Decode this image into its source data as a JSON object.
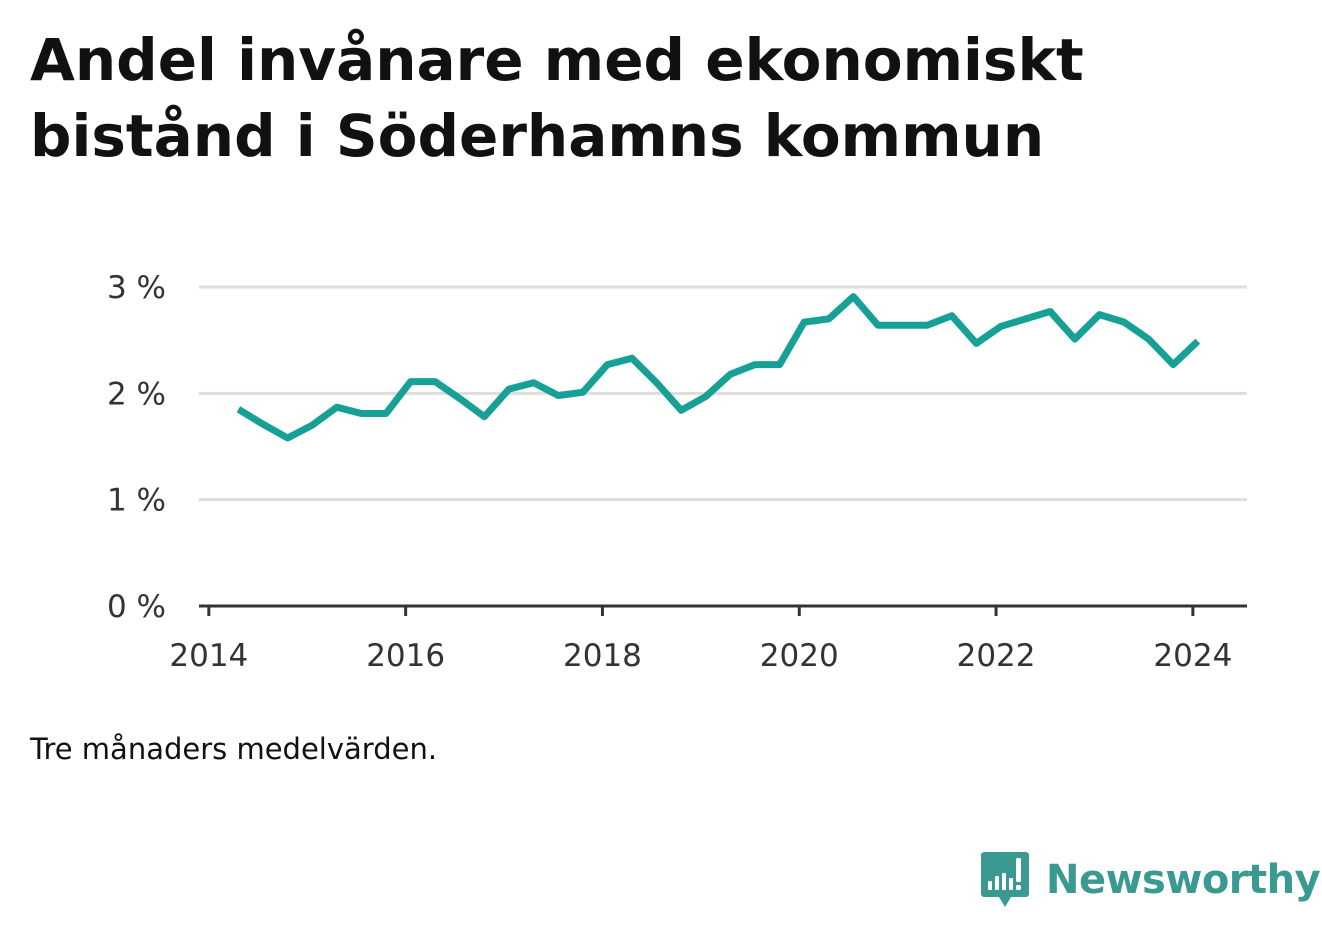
{
  "title": "Andel invånare med ekonomiskt bistånd i Söderhamns kommun",
  "note": "Tre månaders medelvärden.",
  "brand": {
    "name": "Newsworthy",
    "icon": "bar-chart-speech-bubble-icon"
  },
  "colors": {
    "line": "#17a096",
    "grid": "#dddddd",
    "axis": "#333333",
    "text": "#111111",
    "brand": "#3a9a92"
  },
  "chart_data": {
    "type": "line",
    "title": "Andel invånare med ekonomiskt bistånd i Söderhamns kommun",
    "xlabel": "",
    "ylabel": "",
    "x_ticks": [
      2014,
      2016,
      2018,
      2020,
      2022,
      2024
    ],
    "x_tick_labels": [
      "2014",
      "2016",
      "2018",
      "2020",
      "2022",
      "2024"
    ],
    "y_ticks": [
      0,
      1,
      2,
      3
    ],
    "y_tick_labels": [
      "0 %",
      "1 %",
      "2 %",
      "3 %"
    ],
    "xlim": [
      2013.9,
      2024.55
    ],
    "ylim": [
      0,
      3
    ],
    "grid": true,
    "legend": "none",
    "series": [
      {
        "x": [
          2014.3,
          2014.55,
          2014.8,
          2015.05,
          2015.3,
          2015.55,
          2015.8,
          2016.05,
          2016.3,
          2016.55,
          2016.8,
          2017.05,
          2017.3,
          2017.55,
          2017.8,
          2018.05,
          2018.3,
          2018.55,
          2018.8,
          2019.05,
          2019.3,
          2019.55,
          2019.8,
          2020.05,
          2020.3,
          2020.55,
          2020.8,
          2021.05,
          2021.3,
          2021.55,
          2021.8,
          2022.05,
          2022.3,
          2022.55,
          2022.8,
          2023.05,
          2023.3,
          2023.55,
          2023.8,
          2024.05
        ],
        "values": [
          1.85,
          1.71,
          1.58,
          1.7,
          1.87,
          1.81,
          1.81,
          2.11,
          2.11,
          1.95,
          1.78,
          2.04,
          2.1,
          1.98,
          2.01,
          2.27,
          2.33,
          2.1,
          1.84,
          1.97,
          2.18,
          2.27,
          2.27,
          2.67,
          2.7,
          2.91,
          2.64,
          2.64,
          2.64,
          2.73,
          2.47,
          2.63,
          2.7,
          2.77,
          2.51,
          2.74,
          2.67,
          2.51,
          2.27,
          2.49
        ]
      }
    ]
  }
}
